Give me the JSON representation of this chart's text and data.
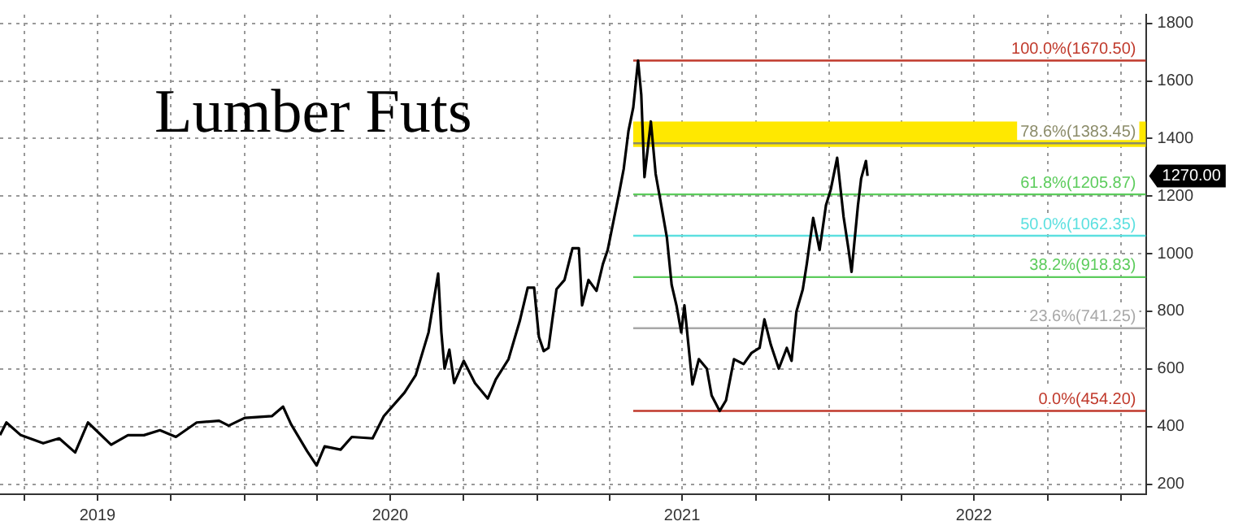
{
  "chart_data": {
    "type": "line",
    "title": "Lumber Futs",
    "x": [
      "2019-03-01",
      "2019-03-09",
      "2019-03-27",
      "2019-04-24",
      "2019-05-14",
      "2019-06-03",
      "2019-06-19",
      "2019-07-18",
      "2019-08-08",
      "2019-08-28",
      "2019-09-17",
      "2019-10-07",
      "2019-11-02",
      "2019-11-30",
      "2019-12-12",
      "2020-01-01",
      "2020-02-04",
      "2020-02-18",
      "2020-02-28",
      "2020-03-19",
      "2020-03-31",
      "2020-04-10",
      "2020-04-30",
      "2020-05-14",
      "2020-06-09",
      "2020-06-23",
      "2020-07-19",
      "2020-08-02",
      "2020-08-18",
      "2020-08-30",
      "2020-09-03",
      "2020-09-07",
      "2020-09-13",
      "2020-09-19",
      "2020-10-01",
      "2020-10-15",
      "2020-10-31",
      "2020-11-10",
      "2020-11-26",
      "2020-12-10",
      "2020-12-20",
      "2020-12-28",
      "2021-01-03",
      "2021-01-09",
      "2021-01-15",
      "2021-01-25",
      "2021-02-04",
      "2021-02-14",
      "2021-02-22",
      "2021-02-26",
      "2021-03-06",
      "2021-03-16",
      "2021-03-24",
      "2021-03-30",
      "2021-04-13",
      "2021-04-19",
      "2021-04-25",
      "2021-05-01",
      "2021-05-07",
      "2021-05-11",
      "2021-05-15",
      "2021-05-23",
      "2021-05-29",
      "2021-06-04",
      "2021-06-12",
      "2021-06-18",
      "2021-06-24",
      "2021-06-30",
      "2021-07-04",
      "2021-07-14",
      "2021-07-22",
      "2021-08-01",
      "2021-08-07",
      "2021-08-17",
      "2021-08-25",
      "2021-09-04",
      "2021-09-16",
      "2021-09-26",
      "2021-10-06",
      "2021-10-12",
      "2021-10-20",
      "2021-10-30",
      "2021-11-09",
      "2021-11-15",
      "2021-11-21",
      "2021-11-29",
      "2021-12-04",
      "2021-12-12",
      "2021-12-20",
      "2021-12-28",
      "2022-01-03",
      "2022-01-11",
      "2022-01-19",
      "2022-01-25",
      "2022-01-29",
      "2022-02-06",
      "2022-02-10",
      "2022-02-16",
      "2022-02-18"
    ],
    "series": [
      {
        "color": "#000000",
        "values": [
          370,
          414,
          370,
          342,
          359,
          310,
          414,
          337,
          370,
          370,
          387,
          364,
          414,
          420,
          403,
          430,
          436,
          469,
          408,
          315,
          265,
          331,
          320,
          364,
          359,
          436,
          518,
          579,
          727,
          931,
          727,
          601,
          667,
          551,
          628,
          551,
          497,
          563,
          634,
          766,
          882,
          882,
          711,
          662,
          673,
          877,
          909,
          1019,
          1019,
          821,
          909,
          871,
          964,
          1013,
          1206,
          1294,
          1426,
          1508,
          1670,
          1552,
          1266,
          1459,
          1277,
          1184,
          1057,
          892,
          821,
          727,
          821,
          546,
          634,
          601,
          508,
          454,
          491,
          634,
          617,
          656,
          673,
          772,
          684,
          601,
          673,
          628,
          799,
          876,
          964,
          1124,
          1013,
          1168,
          1223,
          1333,
          1129,
          1019,
          937,
          1168,
          1261,
          1322,
          1270
        ]
      }
    ],
    "xlim": [
      "2019-03-01",
      "2023-02-01"
    ],
    "xticks": [
      {
        "value": "2019-04-01",
        "label": null
      },
      {
        "value": "2019-07-01",
        "label": "2019"
      },
      {
        "value": "2019-10-01",
        "label": null
      },
      {
        "value": "2020-01-01",
        "label": null
      },
      {
        "value": "2020-04-01",
        "label": null
      },
      {
        "value": "2020-07-01",
        "label": "2020"
      },
      {
        "value": "2020-10-01",
        "label": null
      },
      {
        "value": "2021-01-01",
        "label": null
      },
      {
        "value": "2021-04-01",
        "label": null
      },
      {
        "value": "2021-07-01",
        "label": "2021"
      },
      {
        "value": "2021-10-01",
        "label": null
      },
      {
        "value": "2022-01-01",
        "label": null
      },
      {
        "value": "2022-04-01",
        "label": null
      },
      {
        "value": "2022-07-01",
        "label": "2022"
      },
      {
        "value": "2022-10-01",
        "label": null
      },
      {
        "value": "2023-01-01",
        "label": null
      }
    ],
    "ylim": [
      165,
      1830
    ],
    "yticks": [
      200,
      400,
      600,
      800,
      1000,
      1200,
      1400,
      1600,
      1800
    ],
    "grid": true,
    "legend": false,
    "bands": [
      {
        "axis": "y",
        "from": 1371,
        "to": 1459,
        "color": "#ffe800"
      }
    ],
    "ref_lines": [
      {
        "axis": "y",
        "value": 1670.5,
        "label": "100.0%(1670.50)",
        "color": "#c0392b"
      },
      {
        "axis": "y",
        "value": 1383.45,
        "label": "78.6%(1383.45)",
        "color": "#8c8c6a"
      },
      {
        "axis": "y",
        "value": 1205.87,
        "label": "61.8%(1205.87)",
        "color": "#5ccc5c"
      },
      {
        "axis": "y",
        "value": 1062.35,
        "label": "50.0%(1062.35)",
        "color": "#5ce0e0"
      },
      {
        "axis": "y",
        "value": 918.83,
        "label": "38.2%(918.83)",
        "color": "#5ccc5c"
      },
      {
        "axis": "y",
        "value": 741.25,
        "label": "23.6%(741.25)",
        "color": "#a8a8a8"
      },
      {
        "axis": "y",
        "value": 454.2,
        "label": "0.0%(454.20)",
        "color": "#c0392b"
      }
    ],
    "annotations": [
      "1270.00"
    ]
  }
}
